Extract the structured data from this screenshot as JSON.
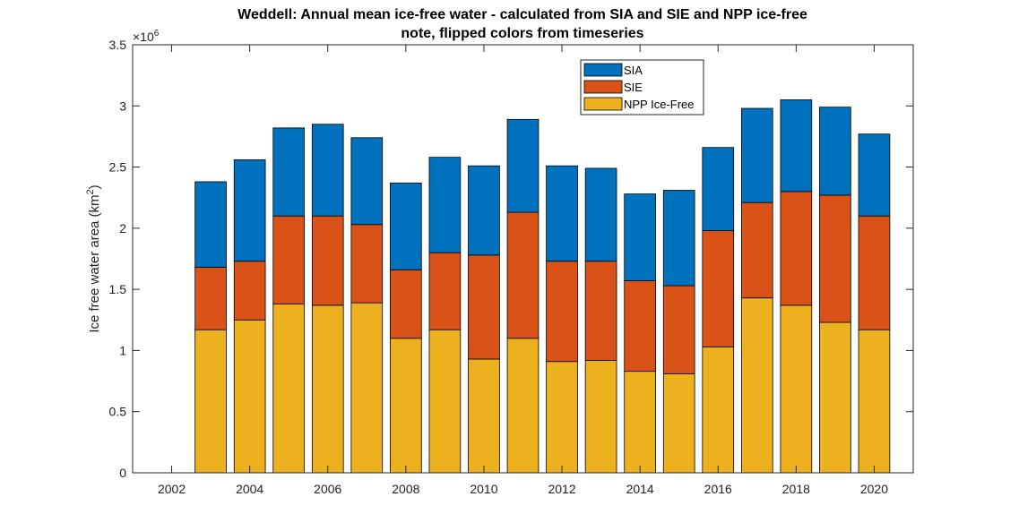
{
  "chart_data": {
    "type": "bar",
    "stacked": true,
    "title": "Weddell: Annual mean ice-free water - calculated from SIA and SIE and NPP ice-free",
    "subtitle": "note, flipped colors from timeseries",
    "xlabel": "",
    "ylabel_text": "Ice free water area (km",
    "ylabel_sup": "2",
    "ylabel_close": ")",
    "y_exponent_base": "×10",
    "y_exponent_power": "6",
    "xlim": [
      2001,
      2021
    ],
    "ylim": [
      0,
      3.5
    ],
    "x_ticks": [
      2002,
      2004,
      2006,
      2008,
      2010,
      2012,
      2014,
      2016,
      2018,
      2020
    ],
    "x_tick_labels": [
      "2002",
      "2004",
      "2006",
      "2008",
      "2010",
      "2012",
      "2014",
      "2016",
      "2018",
      "2020"
    ],
    "y_ticks": [
      0,
      0.5,
      1,
      1.5,
      2,
      2.5,
      3,
      3.5
    ],
    "y_tick_labels": [
      "0",
      "0.5",
      "1",
      "1.5",
      "2",
      "2.5",
      "3",
      "3.5"
    ],
    "grid": false,
    "legend_position": "top-right",
    "categories": [
      2003,
      2004,
      2005,
      2006,
      2007,
      2008,
      2009,
      2010,
      2011,
      2012,
      2013,
      2014,
      2015,
      2016,
      2017,
      2018,
      2019,
      2020
    ],
    "series": [
      {
        "name": "NPP Ice-Free",
        "color": "#EDB120",
        "values": [
          1.17,
          1.25,
          1.38,
          1.37,
          1.39,
          1.1,
          1.17,
          0.93,
          1.1,
          0.91,
          0.92,
          0.83,
          0.81,
          1.03,
          1.43,
          1.37,
          1.23,
          1.17
        ]
      },
      {
        "name": "SIE",
        "color": "#D95319",
        "values": [
          0.51,
          0.48,
          0.72,
          0.73,
          0.64,
          0.56,
          0.63,
          0.85,
          1.03,
          0.82,
          0.81,
          0.74,
          0.72,
          0.95,
          0.78,
          0.93,
          1.04,
          0.93
        ]
      },
      {
        "name": "SIA",
        "color": "#0072BD",
        "values": [
          0.7,
          0.83,
          0.72,
          0.75,
          0.71,
          0.71,
          0.78,
          0.73,
          0.76,
          0.78,
          0.76,
          0.71,
          0.78,
          0.68,
          0.77,
          0.75,
          0.72,
          0.67
        ]
      }
    ],
    "legend_order": [
      "SIA",
      "SIE",
      "NPP Ice-Free"
    ]
  }
}
